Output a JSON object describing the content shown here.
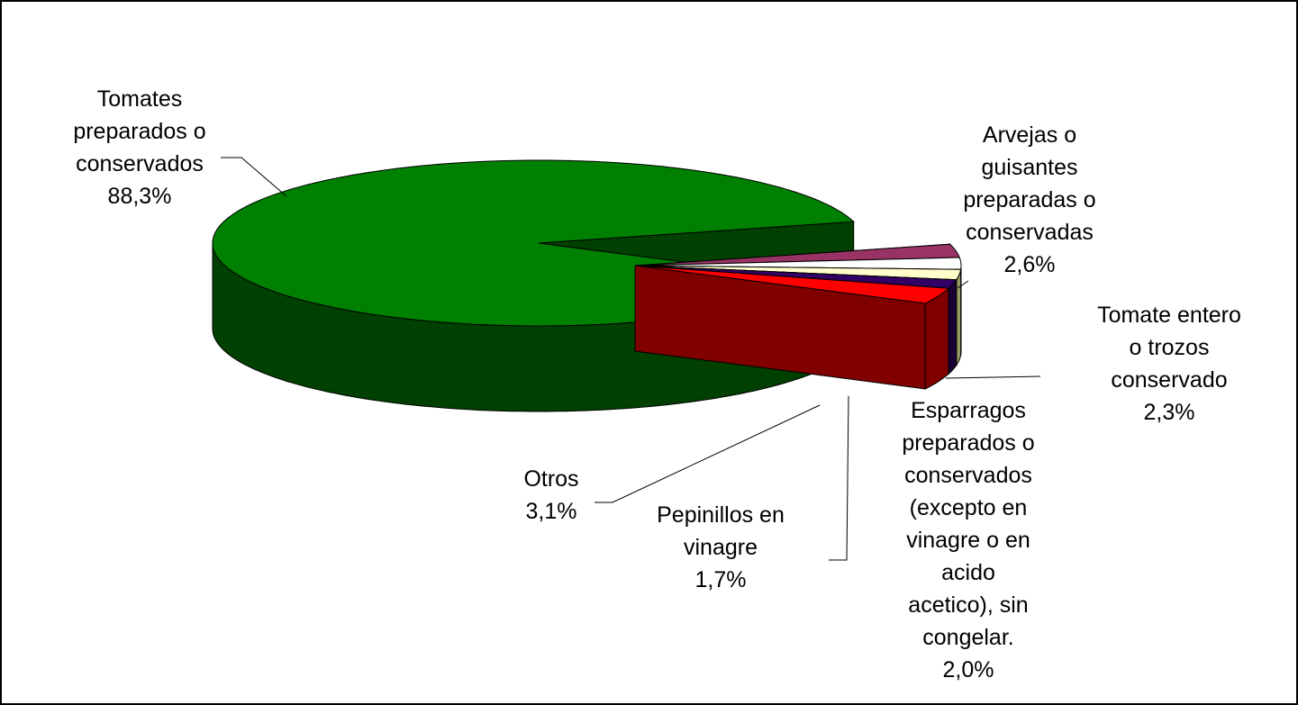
{
  "chart_data": {
    "type": "pie3d",
    "categories": [
      "Tomates preparados o conservados",
      "Arvejas o guisantes preparadas o conservadas",
      "Tomate entero o trozos conservado",
      "Esparragos preparados o conservados (excepto en vinagre o en acido acetico), sin congelar.",
      "Pepinillos en vinagre",
      "Otros"
    ],
    "values": [
      88.3,
      2.6,
      2.3,
      2.0,
      1.7,
      3.1
    ],
    "value_labels": [
      "88,3%",
      "2,6%",
      "2,3%",
      "2,0%",
      "1,7%",
      "3,1%"
    ],
    "colors": [
      "#008000",
      "#993366",
      "#ffffff",
      "#ffffcc",
      "#330066",
      "#ff0000"
    ]
  }
}
